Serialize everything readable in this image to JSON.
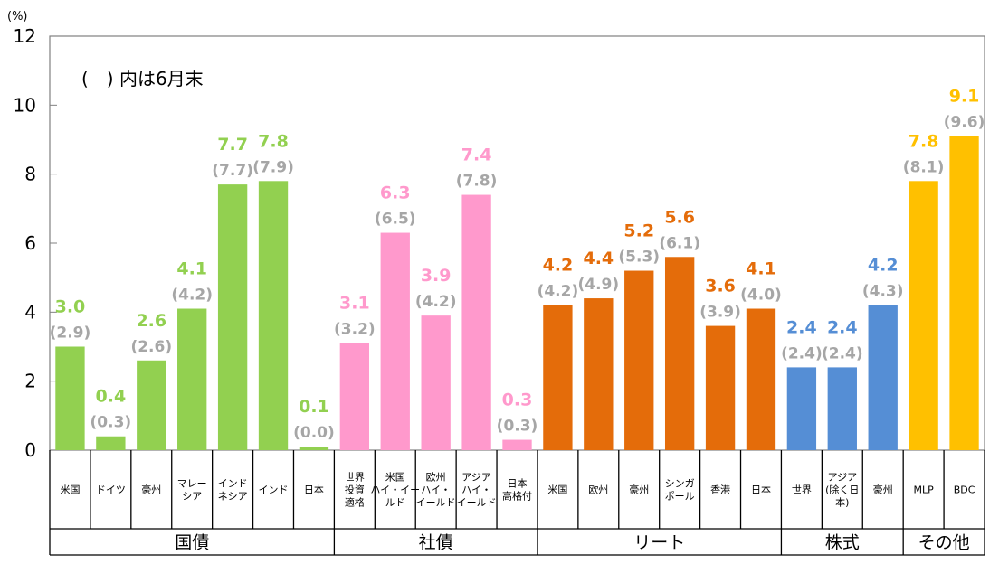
{
  "chart_data": {
    "type": "bar",
    "title": "",
    "ylabel": "(%)",
    "xlabel": "",
    "ylim": [
      0,
      12
    ],
    "yticks": [
      0,
      2,
      4,
      6,
      8,
      10,
      12
    ],
    "note": "(　) 内は6月末",
    "grid": false,
    "legend": "none",
    "groups": [
      {
        "name": "国債",
        "color": "#92D050",
        "label_color": "#92D050",
        "categories": [
          {
            "label": [
              "米国"
            ],
            "value": 3.0,
            "prev": 2.9
          },
          {
            "label": [
              "ドイツ"
            ],
            "value": 0.4,
            "prev": 0.3
          },
          {
            "label": [
              "豪州"
            ],
            "value": 2.6,
            "prev": 2.6
          },
          {
            "label": [
              "マレー",
              "シア"
            ],
            "value": 4.1,
            "prev": 4.2
          },
          {
            "label": [
              "インド",
              "ネシア"
            ],
            "value": 7.7,
            "prev": 7.7
          },
          {
            "label": [
              "インド"
            ],
            "value": 7.8,
            "prev": 7.9
          },
          {
            "label": [
              "日本"
            ],
            "value": 0.1,
            "prev": 0.0
          }
        ]
      },
      {
        "name": "社債",
        "color": "#FF99CC",
        "label_color": "#FF99CC",
        "categories": [
          {
            "label": [
              "世界",
              "投資",
              "適格"
            ],
            "value": 3.1,
            "prev": 3.2
          },
          {
            "label": [
              "米国",
              "ハイ・イー",
              "ルド"
            ],
            "value": 6.3,
            "prev": 6.5
          },
          {
            "label": [
              "欧州",
              "ハイ・",
              "イールド"
            ],
            "value": 3.9,
            "prev": 4.2
          },
          {
            "label": [
              "アジア",
              "ハイ・",
              "イールド"
            ],
            "value": 7.4,
            "prev": 7.8
          },
          {
            "label": [
              "日本",
              "高格付"
            ],
            "value": 0.3,
            "prev": 0.3
          }
        ]
      },
      {
        "name": "リート",
        "color": "#E46C0A",
        "label_color": "#E46C0A",
        "categories": [
          {
            "label": [
              "米国"
            ],
            "value": 4.2,
            "prev": 4.2
          },
          {
            "label": [
              "欧州"
            ],
            "value": 4.4,
            "prev": 4.9
          },
          {
            "label": [
              "豪州"
            ],
            "value": 5.2,
            "prev": 5.3
          },
          {
            "label": [
              "シンガ",
              "ポール"
            ],
            "value": 5.6,
            "prev": 6.1
          },
          {
            "label": [
              "香港"
            ],
            "value": 3.6,
            "prev": 3.9
          },
          {
            "label": [
              "日本"
            ],
            "value": 4.1,
            "prev": 4.0
          }
        ]
      },
      {
        "name": "株式",
        "color": "#558ED5",
        "label_color": "#558ED5",
        "categories": [
          {
            "label": [
              "世界"
            ],
            "value": 2.4,
            "prev": 2.4
          },
          {
            "label": [
              "アジア",
              "(除く日",
              "本)"
            ],
            "value": 2.4,
            "prev": 2.4
          },
          {
            "label": [
              "豪州"
            ],
            "value": 4.2,
            "prev": 4.3
          }
        ]
      },
      {
        "name": "その他",
        "color": "#FFC000",
        "label_color": "#FFC000",
        "categories": [
          {
            "label": [
              "MLP"
            ],
            "value": 7.8,
            "prev": 8.1
          },
          {
            "label": [
              "BDC"
            ],
            "value": 9.1,
            "prev": 9.6
          }
        ]
      }
    ]
  }
}
